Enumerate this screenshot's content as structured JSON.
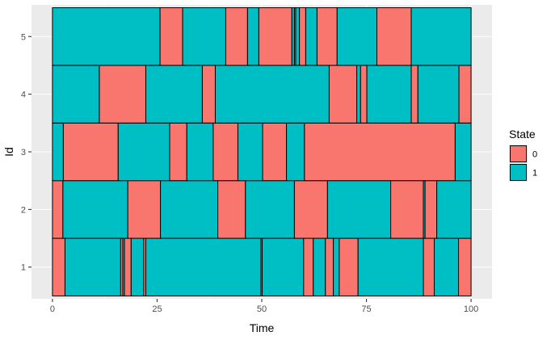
{
  "chart_data": {
    "type": "timeline",
    "xlabel": "Time",
    "ylabel": "Id",
    "xlim": [
      -5,
      105
    ],
    "ylim": [
      0.45,
      5.55
    ],
    "x_ticks": [
      0,
      25,
      50,
      75,
      100
    ],
    "y_ticks": [
      1,
      2,
      3,
      4,
      5
    ],
    "legend": {
      "title": "State",
      "position": "right",
      "entries": [
        {
          "label": "0",
          "color": "#F8766D"
        },
        {
          "label": "1",
          "color": "#00BFC4"
        }
      ]
    },
    "rows": [
      {
        "id": 1,
        "segments": [
          {
            "start": 0,
            "end": 3,
            "state": "0"
          },
          {
            "start": 3,
            "end": 16.3,
            "state": "1"
          },
          {
            "start": 16.3,
            "end": 16.8,
            "state": "0"
          },
          {
            "start": 16.8,
            "end": 17.2,
            "state": "1"
          },
          {
            "start": 17.2,
            "end": 18.8,
            "state": "0"
          },
          {
            "start": 18.8,
            "end": 21.8,
            "state": "1"
          },
          {
            "start": 21.8,
            "end": 22.3,
            "state": "0"
          },
          {
            "start": 22.3,
            "end": 49.8,
            "state": "1"
          },
          {
            "start": 49.8,
            "end": 50.1,
            "state": "0"
          },
          {
            "start": 50.1,
            "end": 60,
            "state": "1"
          },
          {
            "start": 60,
            "end": 62.3,
            "state": "0"
          },
          {
            "start": 62.3,
            "end": 65.2,
            "state": "1"
          },
          {
            "start": 65.2,
            "end": 67.1,
            "state": "0"
          },
          {
            "start": 67.1,
            "end": 68.5,
            "state": "1"
          },
          {
            "start": 68.5,
            "end": 73,
            "state": "0"
          },
          {
            "start": 73,
            "end": 88.6,
            "state": "1"
          },
          {
            "start": 88.6,
            "end": 91.2,
            "state": "0"
          },
          {
            "start": 91.2,
            "end": 97,
            "state": "1"
          },
          {
            "start": 97,
            "end": 100,
            "state": "0"
          }
        ]
      },
      {
        "id": 2,
        "segments": [
          {
            "start": 0,
            "end": 2.5,
            "state": "0"
          },
          {
            "start": 2.5,
            "end": 18,
            "state": "1"
          },
          {
            "start": 18,
            "end": 25.8,
            "state": "0"
          },
          {
            "start": 25.8,
            "end": 39.5,
            "state": "1"
          },
          {
            "start": 39.5,
            "end": 46.1,
            "state": "0"
          },
          {
            "start": 46.1,
            "end": 57.8,
            "state": "1"
          },
          {
            "start": 57.8,
            "end": 65.7,
            "state": "0"
          },
          {
            "start": 65.7,
            "end": 80.8,
            "state": "1"
          },
          {
            "start": 80.8,
            "end": 88.6,
            "state": "0"
          },
          {
            "start": 88.6,
            "end": 89,
            "state": "1"
          },
          {
            "start": 89,
            "end": 91.8,
            "state": "0"
          },
          {
            "start": 91.8,
            "end": 100,
            "state": "1"
          }
        ]
      },
      {
        "id": 3,
        "segments": [
          {
            "start": 0,
            "end": 2.6,
            "state": "1"
          },
          {
            "start": 2.6,
            "end": 15.7,
            "state": "0"
          },
          {
            "start": 15.7,
            "end": 28,
            "state": "1"
          },
          {
            "start": 28,
            "end": 32.1,
            "state": "0"
          },
          {
            "start": 32.1,
            "end": 38.4,
            "state": "1"
          },
          {
            "start": 38.4,
            "end": 44.3,
            "state": "0"
          },
          {
            "start": 44.3,
            "end": 50.2,
            "state": "1"
          },
          {
            "start": 50.2,
            "end": 55.9,
            "state": "0"
          },
          {
            "start": 55.9,
            "end": 60.2,
            "state": "1"
          },
          {
            "start": 60.2,
            "end": 96.2,
            "state": "0"
          },
          {
            "start": 96.2,
            "end": 100,
            "state": "1"
          }
        ]
      },
      {
        "id": 4,
        "segments": [
          {
            "start": 0,
            "end": 11.2,
            "state": "1"
          },
          {
            "start": 11.2,
            "end": 22.3,
            "state": "0"
          },
          {
            "start": 22.3,
            "end": 35.8,
            "state": "1"
          },
          {
            "start": 35.8,
            "end": 38.9,
            "state": "0"
          },
          {
            "start": 38.9,
            "end": 66.1,
            "state": "1"
          },
          {
            "start": 66.1,
            "end": 72.7,
            "state": "0"
          },
          {
            "start": 72.7,
            "end": 73.6,
            "state": "1"
          },
          {
            "start": 73.6,
            "end": 75.1,
            "state": "0"
          },
          {
            "start": 75.1,
            "end": 85.7,
            "state": "1"
          },
          {
            "start": 85.7,
            "end": 87.3,
            "state": "0"
          },
          {
            "start": 87.3,
            "end": 97.1,
            "state": "1"
          },
          {
            "start": 97.1,
            "end": 100,
            "state": "0"
          }
        ]
      },
      {
        "id": 5,
        "segments": [
          {
            "start": 0,
            "end": 25.7,
            "state": "1"
          },
          {
            "start": 25.7,
            "end": 31.1,
            "state": "0"
          },
          {
            "start": 31.1,
            "end": 41.4,
            "state": "1"
          },
          {
            "start": 41.4,
            "end": 46.6,
            "state": "0"
          },
          {
            "start": 46.6,
            "end": 49.3,
            "state": "1"
          },
          {
            "start": 49.3,
            "end": 57.2,
            "state": "0"
          },
          {
            "start": 57.2,
            "end": 57.8,
            "state": "1"
          },
          {
            "start": 57.8,
            "end": 58.1,
            "state": "0"
          },
          {
            "start": 58.1,
            "end": 59,
            "state": "1"
          },
          {
            "start": 59,
            "end": 60.5,
            "state": "0"
          },
          {
            "start": 60.5,
            "end": 63.2,
            "state": "1"
          },
          {
            "start": 63.2,
            "end": 68,
            "state": "0"
          },
          {
            "start": 68,
            "end": 77.5,
            "state": "1"
          },
          {
            "start": 77.5,
            "end": 85.7,
            "state": "0"
          },
          {
            "start": 85.7,
            "end": 100,
            "state": "1"
          }
        ]
      }
    ]
  }
}
